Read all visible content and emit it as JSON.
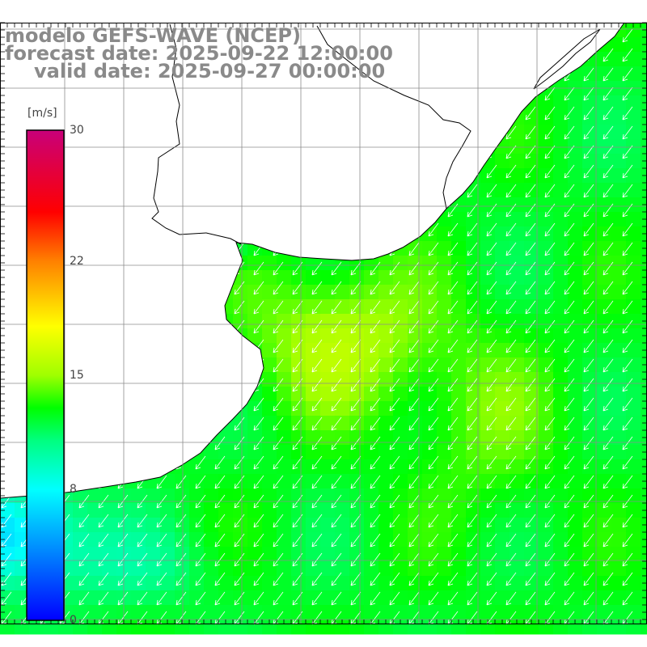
{
  "title": {
    "line1": "modelo GEFS-WAVE (NCEP)",
    "line2": "forecast date: 2025-09-22 12:00:00",
    "line3": "valid date: 2025-09-27 00:00:00"
  },
  "colorbar": {
    "unit": "[m/s]",
    "min": 0,
    "max": 30,
    "ticks": [
      {
        "value": 30,
        "label": "30"
      },
      {
        "value": 22,
        "label": "22"
      },
      {
        "value": 15,
        "label": "15"
      },
      {
        "value": 8,
        "label": "8"
      },
      {
        "value": 0,
        "label": "0"
      }
    ],
    "stops": [
      {
        "value": 0,
        "color": "#0000ff"
      },
      {
        "value": 4,
        "color": "#0080ff"
      },
      {
        "value": 8,
        "color": "#00ffff"
      },
      {
        "value": 11,
        "color": "#00ff80"
      },
      {
        "value": 13,
        "color": "#00ff00"
      },
      {
        "value": 15,
        "color": "#a0ff00"
      },
      {
        "value": 18,
        "color": "#ffff00"
      },
      {
        "value": 22,
        "color": "#ff8000"
      },
      {
        "value": 25,
        "color": "#ff0000"
      },
      {
        "value": 30,
        "color": "#c8007a"
      }
    ]
  },
  "map": {
    "variable": "wind speed",
    "arrow_color": "#ffffff",
    "land_color": "#ffffff",
    "coast_color": "#000000",
    "grid_color": "#8c8c8c"
  }
}
